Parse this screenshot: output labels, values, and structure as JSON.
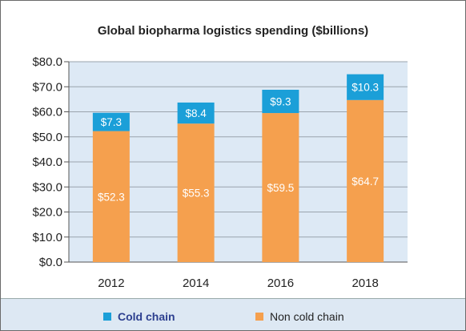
{
  "chart_data": {
    "type": "bar",
    "stacked": true,
    "title": "Global biopharma logistics spending ($billions)",
    "xlabel": "",
    "ylabel": "",
    "categories": [
      "2012",
      "2014",
      "2016",
      "2018"
    ],
    "series": [
      {
        "name": "Non cold chain",
        "values": [
          52.3,
          55.3,
          59.5,
          64.7
        ],
        "labels": [
          "$52.3",
          "$55.3",
          "$59.5",
          "$64.7"
        ],
        "color": "#f5a04e"
      },
      {
        "name": "Cold chain",
        "values": [
          7.3,
          8.4,
          9.3,
          10.3
        ],
        "labels": [
          "$7.3",
          "$8.4",
          "$9.3",
          "$10.3"
        ],
        "color": "#1b9fd8"
      }
    ],
    "ylim": [
      0,
      80
    ],
    "yticks": [
      0,
      10,
      20,
      30,
      40,
      50,
      60,
      70,
      80
    ],
    "ytick_labels": [
      "$0.0",
      "$10.0",
      "$20.0",
      "$30.0",
      "$40.0",
      "$50.0",
      "$60.0",
      "$70.0",
      "$80.0"
    ],
    "grid": true,
    "legend_position": "bottom"
  },
  "legend": {
    "cold_label": "Cold chain",
    "non_cold_label": "Non cold chain"
  },
  "colors": {
    "cold": "#1b9fd8",
    "non_cold": "#f5a04e",
    "plot_background": "#dde9f5"
  }
}
